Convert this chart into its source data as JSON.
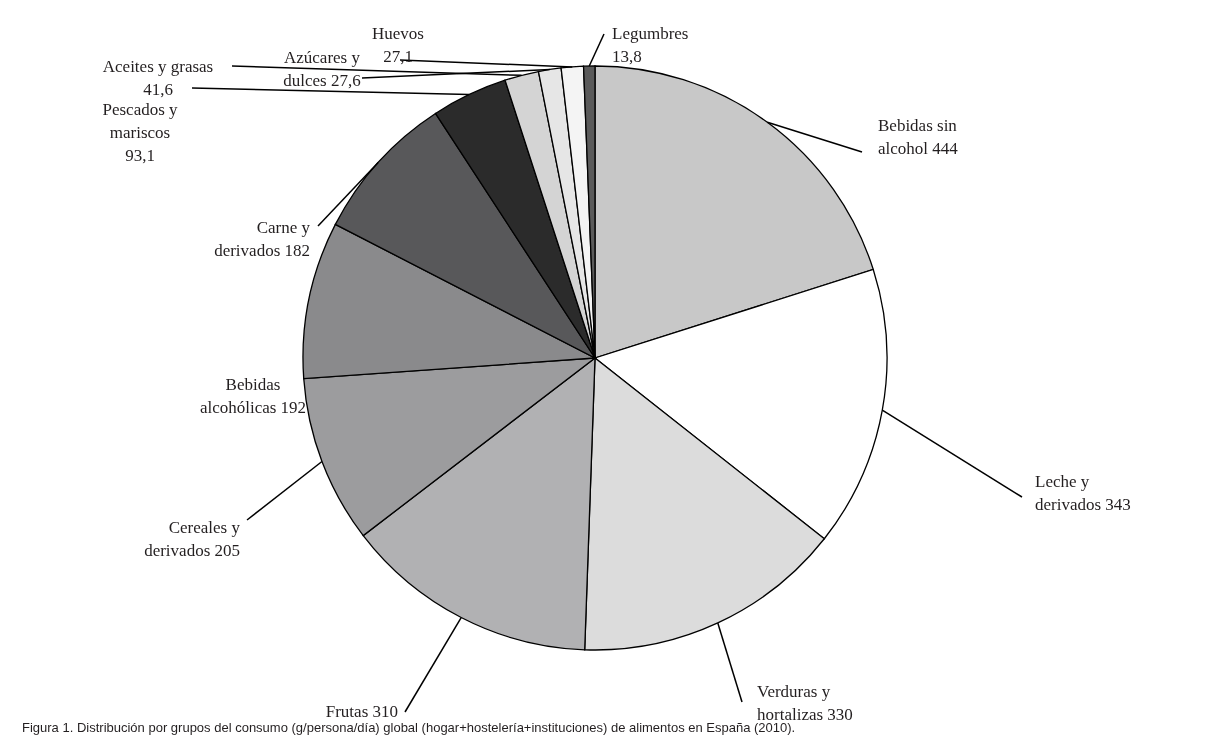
{
  "chart_data": {
    "type": "pie",
    "categories": [
      "Bebidas sin alcohol",
      "Leche y derivados",
      "Verduras y hortalizas",
      "Frutas",
      "Cereales y derivados",
      "Bebidas alcohólicas",
      "Carne y derivados",
      "Pescados y mariscos",
      "Aceites y grasas",
      "Azúcares y dulces",
      "Huevos",
      "Legumbres"
    ],
    "values": [
      444,
      343,
      330,
      310,
      205,
      192,
      182,
      93.1,
      41.6,
      27.6,
      27.1,
      13.8
    ],
    "value_labels": [
      "444",
      "343",
      "330",
      "310",
      "205",
      "192",
      "182",
      "93,1",
      "41,6",
      "27,6",
      "27,1",
      "13,8"
    ],
    "colors": [
      "#c8c8c8",
      "#ffffff",
      "#dcdcdc",
      "#b1b1b3",
      "#9c9c9e",
      "#8a8a8c",
      "#58585a",
      "#2b2b2b",
      "#d4d4d4",
      "#e6e6e6",
      "#f4f4f4",
      "#5a5a5a"
    ],
    "annotations": [
      "Figura 1. Distribución por grupos del consumo (g/persona/día) global (hogar+hostelería+instituciones) de alimentos en España (2010)."
    ]
  }
}
